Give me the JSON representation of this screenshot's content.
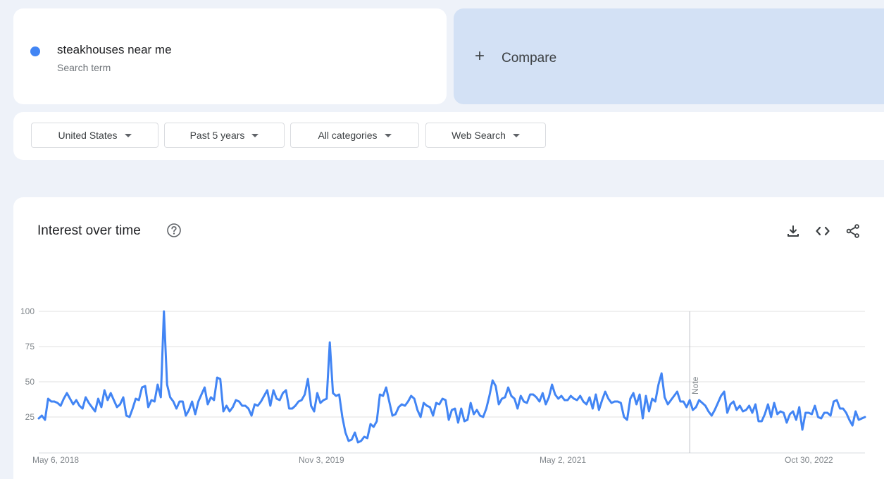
{
  "search_term": {
    "label": "steakhouses near me",
    "sublabel": "Search term",
    "color": "#4285f4"
  },
  "compare": {
    "label": "Compare",
    "icon": "plus-icon"
  },
  "filters": {
    "region": "United States",
    "time_range": "Past 5 years",
    "category": "All categories",
    "search_type": "Web Search"
  },
  "chart_panel": {
    "title": "Interest over time",
    "help_icon": "help-circle-icon",
    "toolbar_icons": [
      "download-icon",
      "embed-code-icon",
      "share-icon"
    ]
  },
  "chart_data": {
    "type": "line",
    "title": "Interest over time",
    "xlabel": "",
    "ylabel": "",
    "ylim": [
      0,
      100
    ],
    "yticks": [
      25,
      50,
      75,
      100
    ],
    "xtick_labels": [
      "May 6, 2018",
      "Nov 3, 2019",
      "May 2, 2021",
      "Oct 30, 2022"
    ],
    "note_label": "Note",
    "note_week_index": 208,
    "grid": true,
    "line_color": "#4285f4",
    "series": [
      {
        "name": "steakhouses near me",
        "values": [
          24,
          26,
          23,
          38,
          36,
          36,
          35,
          33,
          38,
          42,
          38,
          34,
          37,
          33,
          31,
          39,
          35,
          32,
          29,
          38,
          32,
          44,
          37,
          42,
          37,
          32,
          34,
          39,
          26,
          25,
          31,
          38,
          37,
          46,
          47,
          32,
          37,
          36,
          48,
          39,
          100,
          48,
          39,
          36,
          31,
          36,
          36,
          26,
          30,
          36,
          27,
          36,
          41,
          46,
          34,
          39,
          37,
          53,
          52,
          29,
          33,
          29,
          32,
          37,
          36,
          33,
          33,
          31,
          26,
          34,
          33,
          36,
          40,
          44,
          33,
          44,
          38,
          37,
          42,
          44,
          31,
          31,
          33,
          36,
          37,
          41,
          52,
          33,
          29,
          42,
          35,
          37,
          38,
          78,
          42,
          40,
          41,
          25,
          14,
          8,
          9,
          14,
          7,
          8,
          11,
          10,
          20,
          18,
          22,
          41,
          40,
          46,
          36,
          26,
          27,
          32,
          34,
          33,
          36,
          40,
          38,
          30,
          25,
          35,
          33,
          32,
          26,
          35,
          34,
          38,
          37,
          23,
          30,
          31,
          21,
          31,
          22,
          23,
          35,
          27,
          30,
          26,
          25,
          31,
          40,
          51,
          47,
          34,
          38,
          39,
          46,
          40,
          38,
          31,
          40,
          36,
          35,
          41,
          41,
          39,
          36,
          42,
          34,
          39,
          48,
          41,
          38,
          40,
          37,
          37,
          40,
          38,
          37,
          40,
          36,
          34,
          39,
          31,
          41,
          30,
          37,
          43,
          38,
          35,
          36,
          36,
          35,
          25,
          23,
          38,
          42,
          34,
          41,
          24,
          40,
          29,
          38,
          36,
          48,
          56,
          39,
          34,
          37,
          40,
          43,
          36,
          36,
          32,
          37,
          30,
          32,
          37,
          35,
          33,
          29,
          26,
          30,
          35,
          40,
          43,
          28,
          34,
          36,
          30,
          33,
          29,
          30,
          33,
          28,
          34,
          22,
          22,
          27,
          34,
          25,
          35,
          27,
          29,
          28,
          21,
          27,
          29,
          23,
          32,
          16,
          28,
          28,
          27,
          33,
          25,
          24,
          28,
          28,
          26,
          36,
          37,
          31,
          31,
          28,
          23,
          19,
          29,
          23,
          24,
          25
        ]
      }
    ]
  }
}
